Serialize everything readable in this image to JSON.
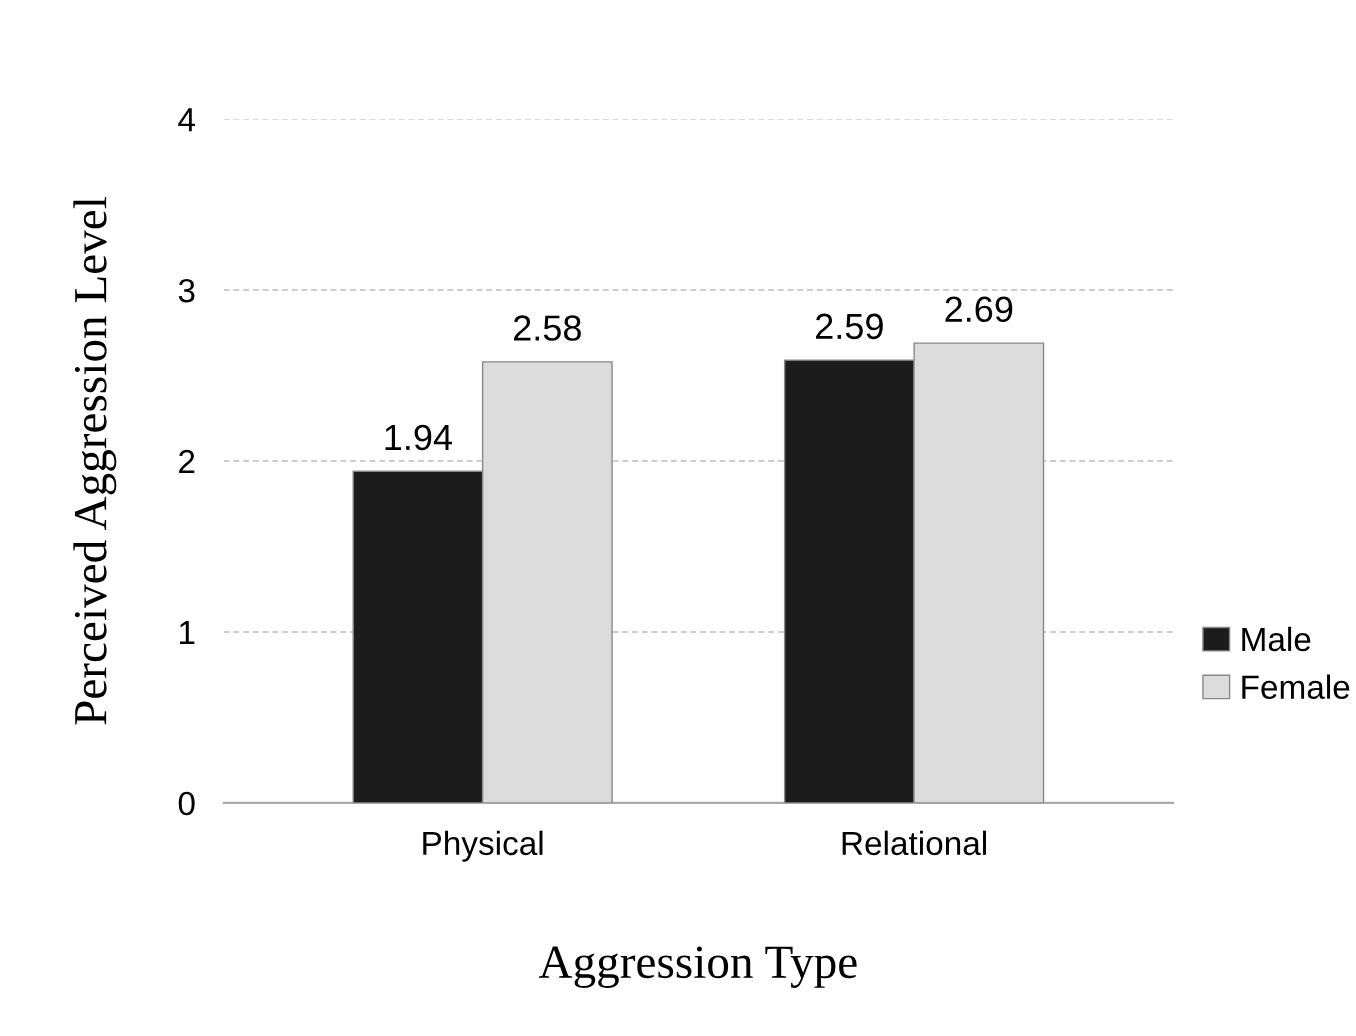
{
  "chart_data": {
    "type": "bar",
    "xlabel": "Aggression Type",
    "ylabel": "Perceived Aggression Level",
    "categories": [
      "Physical",
      "Relational"
    ],
    "series": [
      {
        "name": "Male",
        "color": "#1c1c1c",
        "values": [
          1.94,
          2.59
        ]
      },
      {
        "name": "Female",
        "color": "#dcdcdc",
        "values": [
          2.58,
          2.69
        ]
      }
    ],
    "ylim": [
      0,
      4
    ],
    "yticks": [
      0,
      1,
      2,
      3,
      4
    ],
    "grid": "y",
    "legend": "right",
    "data_labels": true
  }
}
